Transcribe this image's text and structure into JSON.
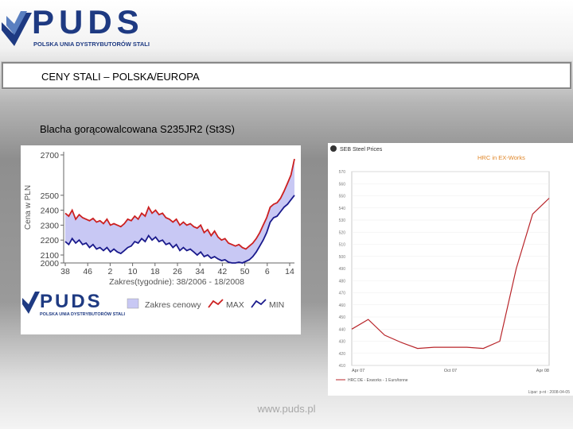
{
  "header": {
    "logo_text": "PUDS",
    "logo_subtitle": "POLSKA UNIA DYSTRYBUTORÓW STALI"
  },
  "section_title": "CENY STALI – POLSKA/EUROPA",
  "product_title": "Blacha gorącowalcowana S235JR2 (St3S)",
  "footer": "www.puds.pl",
  "chart_data": [
    {
      "type": "area",
      "ylabel": "Cena w PLN",
      "xlabel": "Zakres(tygodnie): 38/2006 - 18/2008",
      "yticks": [
        2000,
        2100,
        2200,
        2300,
        2400,
        2500,
        2700
      ],
      "xticks": [
        "38",
        "46",
        "2",
        "10",
        "18",
        "26",
        "34",
        "42",
        "50",
        "6",
        "14"
      ],
      "x_range": [
        "38/2006",
        "18/2008"
      ],
      "legend": {
        "range_label": "Zakres cenowy",
        "max_label": "MAX",
        "min_label": "MIN"
      },
      "logo_text": "PUDS",
      "logo_subtitle": "POLSKA UNIA DYSTRYBUTORÓW STALI",
      "series": [
        {
          "name": "MAX",
          "color": "#cc2020",
          "values": [
            2380,
            2360,
            2400,
            2340,
            2370,
            2350,
            2340,
            2330,
            2345,
            2320,
            2330,
            2310,
            2340,
            2300,
            2310,
            2300,
            2290,
            2310,
            2340,
            2330,
            2360,
            2340,
            2380,
            2360,
            2420,
            2380,
            2400,
            2370,
            2380,
            2350,
            2340,
            2320,
            2340,
            2300,
            2320,
            2300,
            2310,
            2290,
            2280,
            2300,
            2250,
            2270,
            2230,
            2260,
            2220,
            2200,
            2210,
            2180,
            2170,
            2160,
            2170,
            2150,
            2140,
            2160,
            2180,
            2210,
            2250,
            2300,
            2350,
            2420,
            2440,
            2450,
            2480,
            2520,
            2560,
            2600,
            2680
          ]
        },
        {
          "name": "MIN",
          "color": "#1a1a8c",
          "values": [
            2190,
            2170,
            2210,
            2180,
            2200,
            2170,
            2180,
            2150,
            2170,
            2140,
            2150,
            2130,
            2150,
            2120,
            2140,
            2120,
            2110,
            2130,
            2150,
            2160,
            2190,
            2180,
            2210,
            2190,
            2230,
            2200,
            2220,
            2190,
            2200,
            2170,
            2180,
            2150,
            2170,
            2130,
            2150,
            2130,
            2140,
            2120,
            2100,
            2120,
            2080,
            2100,
            2060,
            2080,
            2050,
            2030,
            2040,
            2010,
            2000,
            1990,
            2010,
            2000,
            2020,
            2040,
            2080,
            2120,
            2160,
            2200,
            2250,
            2320,
            2350,
            2360,
            2390,
            2420,
            2440,
            2470,
            2500
          ]
        }
      ]
    },
    {
      "type": "line",
      "title": "SEB Steel Prices",
      "subtitle": "HRC in EX-Works",
      "source_note": "Lipar: p-nt : 2008-04-05",
      "legend_label": "HRC DE - Exworks - 1 Euro/tonne",
      "x_labels": [
        "Apr 07",
        "Oct 07",
        "Apr 08"
      ],
      "yticks": [
        410,
        420,
        430,
        440,
        450,
        460,
        470,
        480,
        490,
        500,
        510,
        520,
        530,
        540,
        550,
        560,
        570
      ],
      "ylim": [
        410,
        570
      ],
      "x": [
        0,
        1,
        2,
        3,
        4,
        5,
        6,
        7,
        8,
        9,
        10,
        11,
        12
      ],
      "values": [
        440,
        448,
        435,
        429,
        424,
        425,
        425,
        425,
        424,
        430,
        490,
        535,
        548
      ],
      "color": "#b8252a"
    }
  ]
}
